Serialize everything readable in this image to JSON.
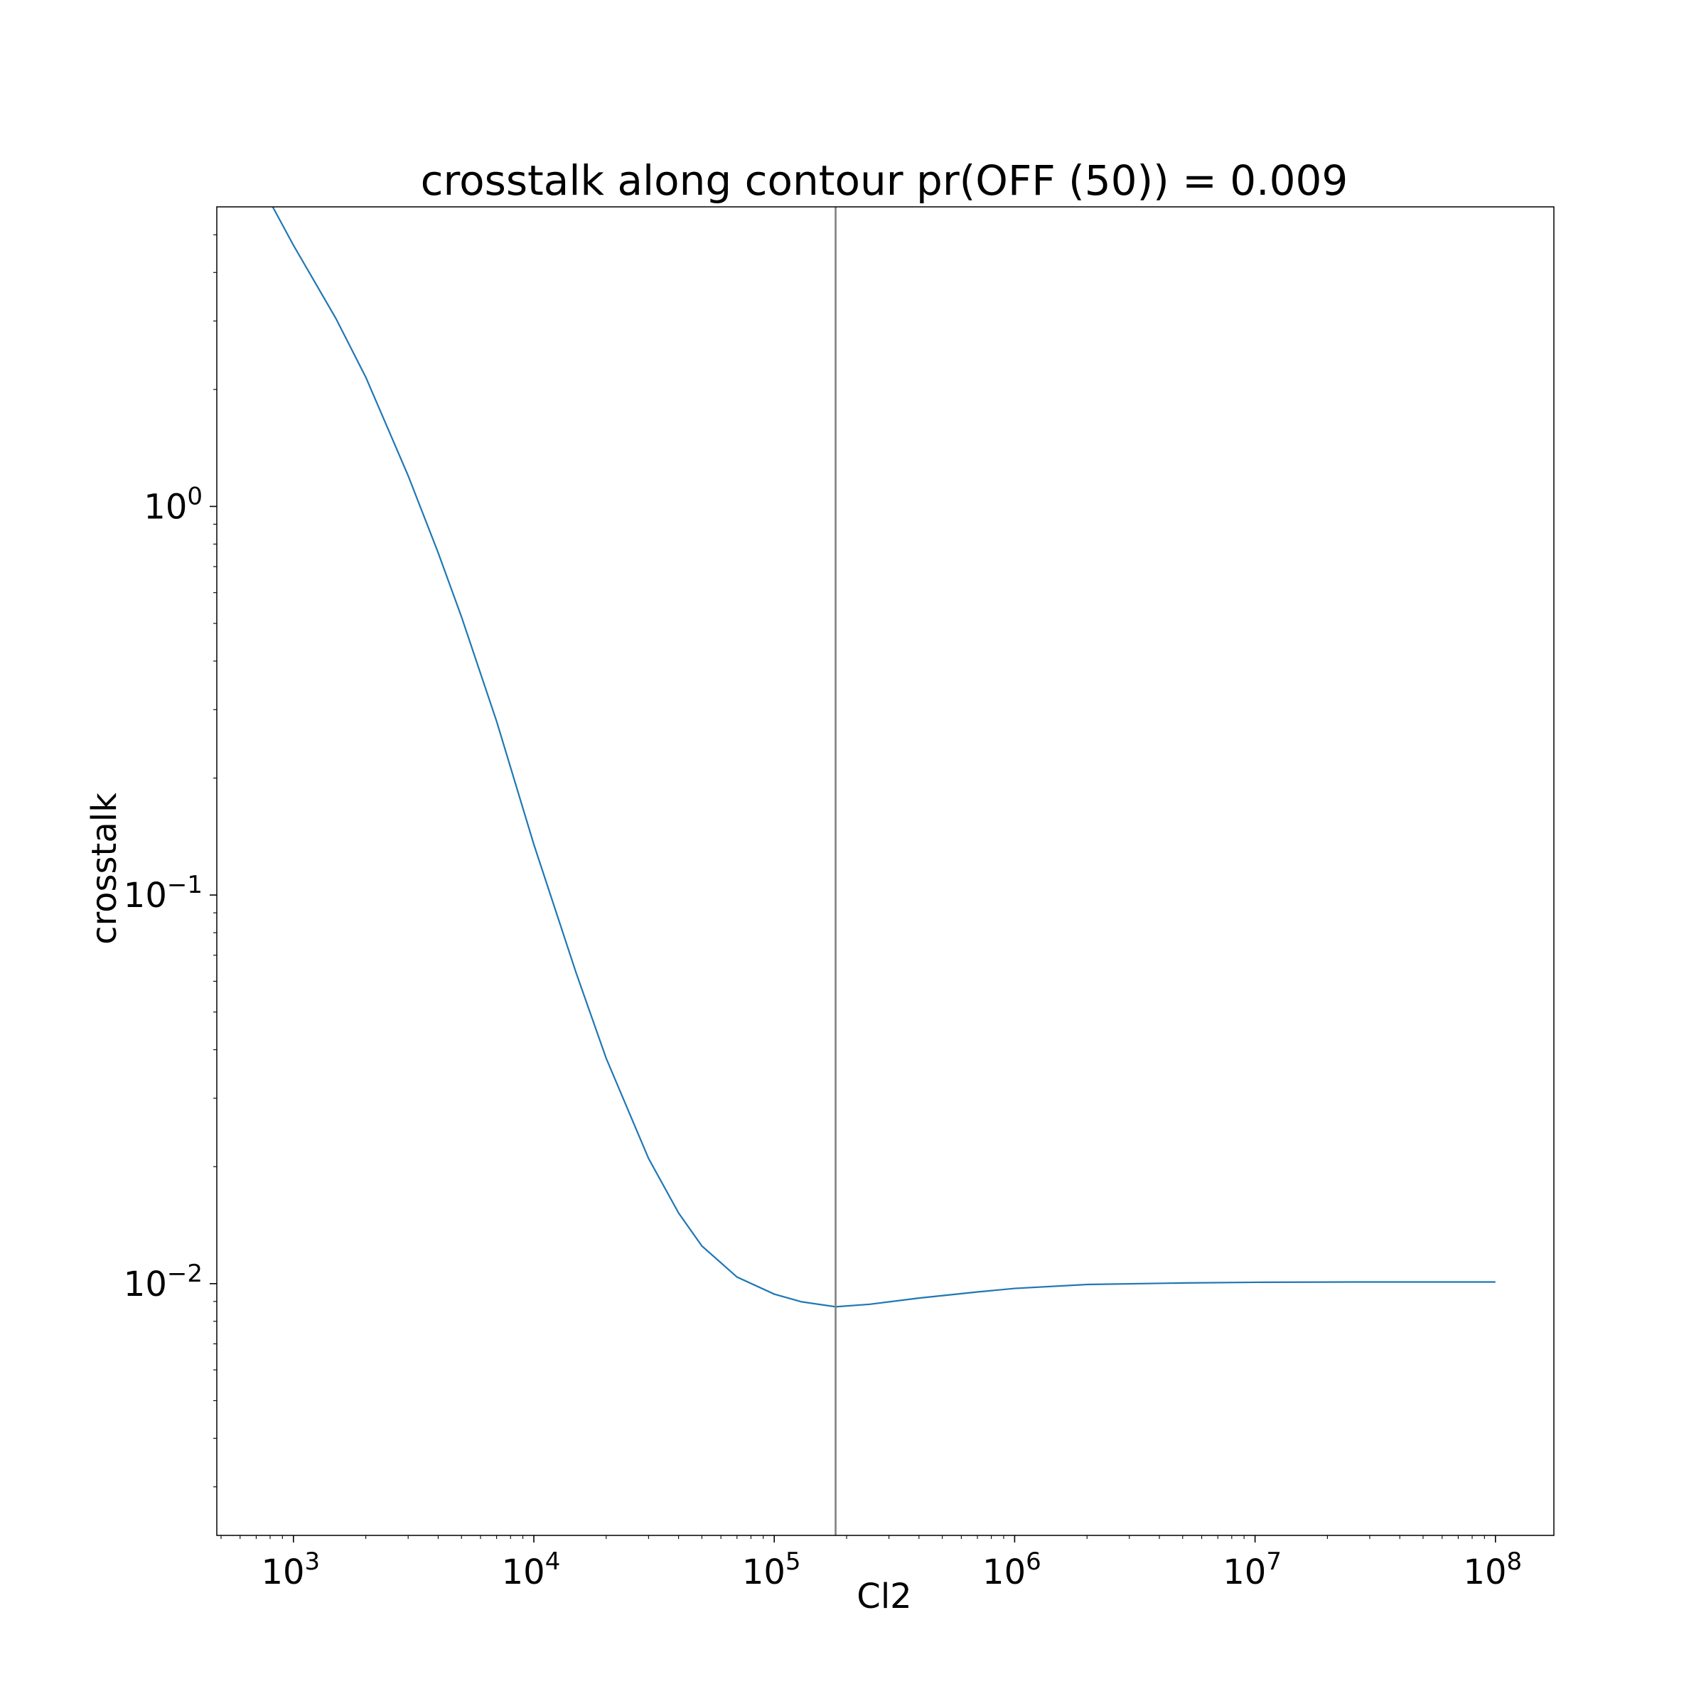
{
  "chart_data": {
    "type": "line",
    "title": "crosstalk along contour pr(OFF (50)) = 0.009",
    "xlabel": "Cl2",
    "ylabel": "crosstalk",
    "xscale": "log",
    "yscale": "log",
    "xlim": [
      480,
      175000000
    ],
    "ylim": [
      0.00225,
      5.9
    ],
    "x_ticks": [
      {
        "value": 1000,
        "base": "10",
        "exp": "3"
      },
      {
        "value": 10000,
        "base": "10",
        "exp": "4"
      },
      {
        "value": 100000,
        "base": "10",
        "exp": "5"
      },
      {
        "value": 1000000,
        "base": "10",
        "exp": "6"
      },
      {
        "value": 10000000,
        "base": "10",
        "exp": "7"
      },
      {
        "value": 100000000,
        "base": "10",
        "exp": "8"
      }
    ],
    "y_ticks": [
      {
        "value": 1,
        "base": "10",
        "exp": "0"
      },
      {
        "value": 0.1,
        "base": "10",
        "exp": "−1"
      },
      {
        "value": 0.01,
        "base": "10",
        "exp": "−2"
      }
    ],
    "grid": false,
    "series": [
      {
        "color": "#1f77b4",
        "x": [
          820,
          1000,
          1500,
          2000,
          3000,
          4000,
          5000,
          7000,
          10000,
          15000,
          20000,
          30000,
          40000,
          50000,
          70000,
          100000,
          130000,
          180000,
          250000,
          400000,
          700000,
          1000000,
          2000000,
          5000000,
          10000000,
          30000000,
          100000000
        ],
        "y": [
          5.9,
          4.7,
          3.05,
          2.15,
          1.2,
          0.76,
          0.52,
          0.28,
          0.135,
          0.063,
          0.038,
          0.021,
          0.0152,
          0.0125,
          0.0104,
          0.0094,
          0.00898,
          0.00872,
          0.00885,
          0.00918,
          0.00952,
          0.00972,
          0.00995,
          0.01004,
          0.01008,
          0.0101,
          0.0101
        ]
      }
    ],
    "vline": {
      "x": 180000,
      "color": "#808080"
    }
  }
}
